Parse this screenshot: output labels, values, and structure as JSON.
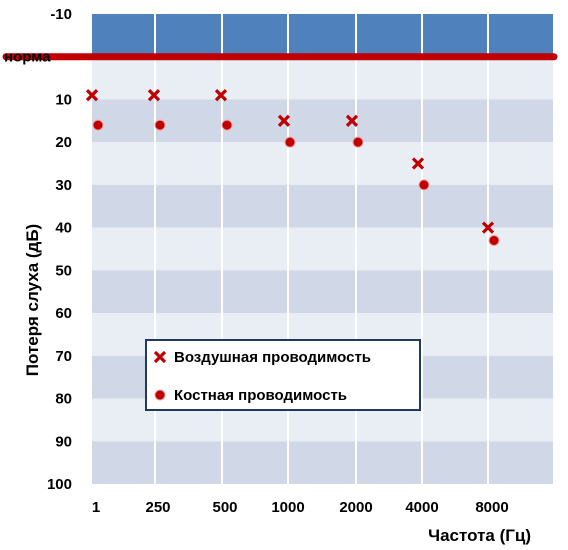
{
  "chart_data": {
    "type": "scatter",
    "title": "",
    "xlabel": "Частота (Гц)",
    "ylabel": "Потеря  слуха  (дБ)",
    "x_categories": [
      "1",
      "250",
      "500",
      "1000",
      "2000",
      "4000",
      "8000"
    ],
    "yticks": [
      "-10",
      "норма",
      "10",
      "20",
      "30",
      "40",
      "50",
      "60",
      "70",
      "80",
      "90",
      "100"
    ],
    "ylim": [
      -10,
      100
    ],
    "y_inverted": true,
    "reference_line": {
      "label": "норма",
      "y": 0
    },
    "series": [
      {
        "name": "Воздушная проводимость",
        "marker": "x",
        "x": [
          "1",
          "250",
          "500",
          "1000",
          "2000",
          "4000",
          "8000"
        ],
        "y": [
          9,
          9,
          9,
          15,
          15,
          25,
          40
        ]
      },
      {
        "name": "Костная проводимость",
        "marker": "circle",
        "x": [
          "1",
          "250",
          "500",
          "1000",
          "2000",
          "4000",
          "8000"
        ],
        "y": [
          16,
          16,
          16,
          20,
          20,
          30,
          43
        ]
      }
    ],
    "legend_position": "bottom-center",
    "grid": true,
    "colors": {
      "band_top": "#4f81bd",
      "band_dark": "#d0d8e8",
      "band_light": "#e9edf4",
      "marker": "#c00000",
      "normal_line": "#c00000",
      "legend_border": "#1f3864"
    }
  }
}
